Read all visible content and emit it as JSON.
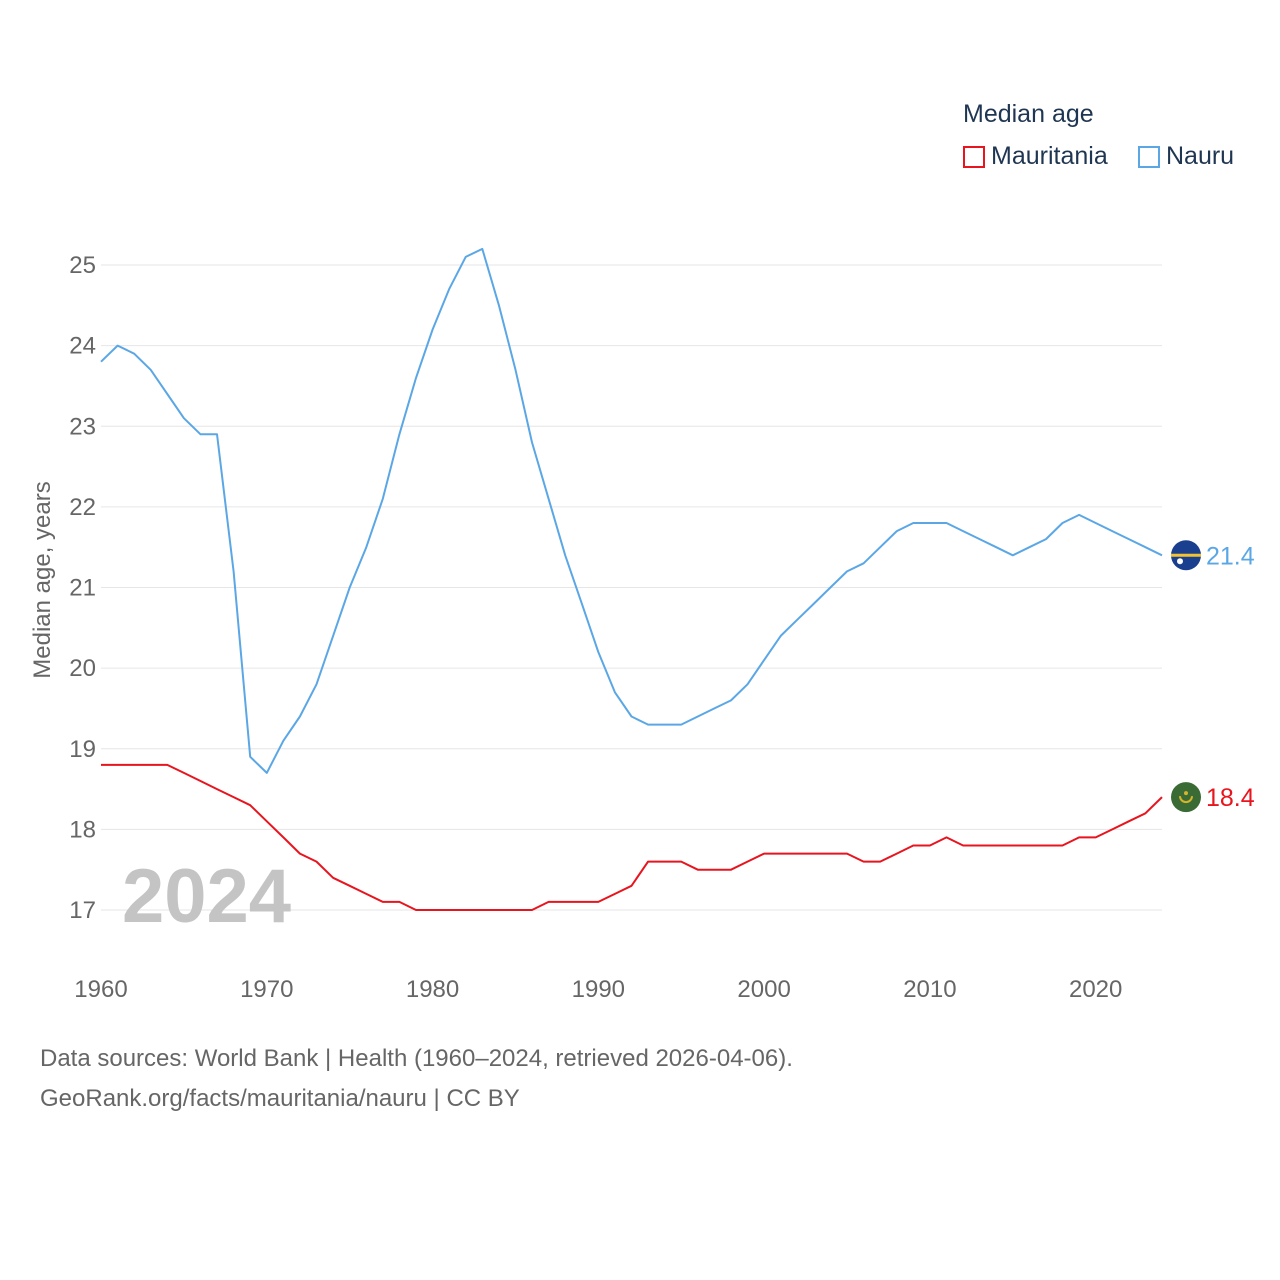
{
  "chart_data": {
    "type": "line",
    "title": "",
    "xlabel": "",
    "ylabel": "Median age, years",
    "xlim": [
      1960,
      2024
    ],
    "ylim": [
      16.5,
      25.6
    ],
    "xticks": [
      1960,
      1970,
      1980,
      1990,
      2000,
      2010,
      2020
    ],
    "yticks": [
      17,
      18,
      19,
      20,
      21,
      22,
      23,
      24,
      25
    ],
    "grid": true,
    "year_label": "2024",
    "legend": {
      "title": "Median age",
      "placement": "top-right"
    },
    "x": [
      1960,
      1961,
      1962,
      1963,
      1964,
      1965,
      1966,
      1967,
      1968,
      1969,
      1970,
      1971,
      1972,
      1973,
      1974,
      1975,
      1976,
      1977,
      1978,
      1979,
      1980,
      1981,
      1982,
      1983,
      1984,
      1985,
      1986,
      1987,
      1988,
      1989,
      1990,
      1991,
      1992,
      1993,
      1994,
      1995,
      1996,
      1997,
      1998,
      1999,
      2000,
      2001,
      2002,
      2003,
      2004,
      2005,
      2006,
      2007,
      2008,
      2009,
      2010,
      2011,
      2012,
      2013,
      2014,
      2015,
      2016,
      2017,
      2018,
      2019,
      2020,
      2021,
      2022,
      2023,
      2024
    ],
    "series": [
      {
        "name": "Mauritania",
        "color": "#e8141e",
        "end_label": "18.4",
        "flag_colors": [
          "#3a6b35",
          "#d4b42a"
        ],
        "values": [
          18.8,
          18.8,
          18.8,
          18.8,
          18.8,
          18.7,
          18.6,
          18.5,
          18.4,
          18.3,
          18.1,
          17.9,
          17.7,
          17.6,
          17.4,
          17.3,
          17.2,
          17.1,
          17.1,
          17.0,
          17.0,
          17.0,
          17.0,
          17.0,
          17.0,
          17.0,
          17.0,
          17.1,
          17.1,
          17.1,
          17.1,
          17.2,
          17.3,
          17.6,
          17.6,
          17.6,
          17.5,
          17.5,
          17.5,
          17.6,
          17.7,
          17.7,
          17.7,
          17.7,
          17.7,
          17.7,
          17.6,
          17.6,
          17.7,
          17.8,
          17.8,
          17.9,
          17.8,
          17.8,
          17.8,
          17.8,
          17.8,
          17.8,
          17.8,
          17.9,
          17.9,
          18.0,
          18.1,
          18.2,
          18.4
        ]
      },
      {
        "name": "Nauru",
        "color": "#5ba7e5",
        "end_label": "21.4",
        "flag_colors": [
          "#1b3f8f",
          "#f2c230"
        ],
        "values": [
          23.8,
          24.0,
          23.9,
          23.7,
          23.4,
          23.1,
          22.9,
          22.9,
          21.2,
          18.9,
          18.7,
          19.1,
          19.4,
          19.8,
          20.4,
          21.0,
          21.5,
          22.1,
          22.9,
          23.6,
          24.2,
          24.7,
          25.1,
          25.2,
          24.5,
          23.7,
          22.8,
          22.1,
          21.4,
          20.8,
          20.2,
          19.7,
          19.4,
          19.3,
          19.3,
          19.3,
          19.4,
          19.5,
          19.6,
          19.8,
          20.1,
          20.4,
          20.6,
          20.8,
          21.0,
          21.2,
          21.3,
          21.5,
          21.7,
          21.8,
          21.8,
          21.8,
          21.7,
          21.6,
          21.5,
          21.4,
          21.5,
          21.6,
          21.8,
          21.9,
          21.8,
          21.7,
          21.6,
          21.5,
          21.4
        ]
      }
    ]
  },
  "footer": {
    "line1": "Data sources: World Bank | Health (1960–2024, retrieved 2026-04-06).",
    "line2": "GeoRank.org/facts/mauritania/nauru | CC BY"
  }
}
